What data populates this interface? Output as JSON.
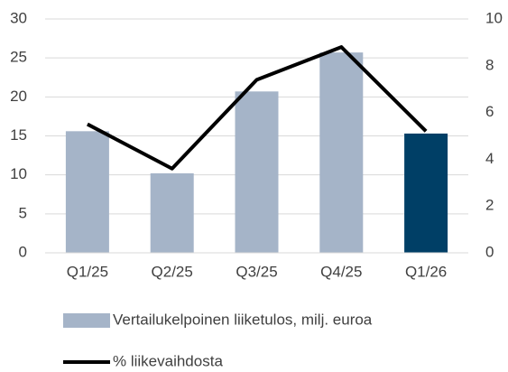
{
  "chart_data": {
    "type": "bar-line",
    "categories": [
      "Q1/25",
      "Q2/25",
      "Q3/25",
      "Q4/25",
      "Q1/26"
    ],
    "series": [
      {
        "name": "Vertailukelpoinen liiketulos, milj. euroa",
        "type": "bar",
        "color": "#a5b4c8",
        "colors": [
          "#a5b4c8",
          "#a5b4c8",
          "#a5b4c8",
          "#a5b4c8",
          "#003f66"
        ],
        "values": [
          15.6,
          10.2,
          20.7,
          25.7,
          15.3
        ]
      },
      {
        "name": "% liikevaihdosta",
        "type": "line",
        "color": "#000000",
        "axis": "y2",
        "values": [
          5.5,
          3.6,
          7.4,
          8.8,
          5.2
        ]
      }
    ],
    "ylim": [
      0,
      30
    ],
    "yticks": [
      0,
      5,
      10,
      15,
      20,
      25,
      30
    ],
    "y2lim": [
      0,
      10
    ],
    "y2ticks": [
      0,
      2,
      4,
      6,
      8,
      10
    ],
    "grid": true,
    "legend": "bottom"
  }
}
